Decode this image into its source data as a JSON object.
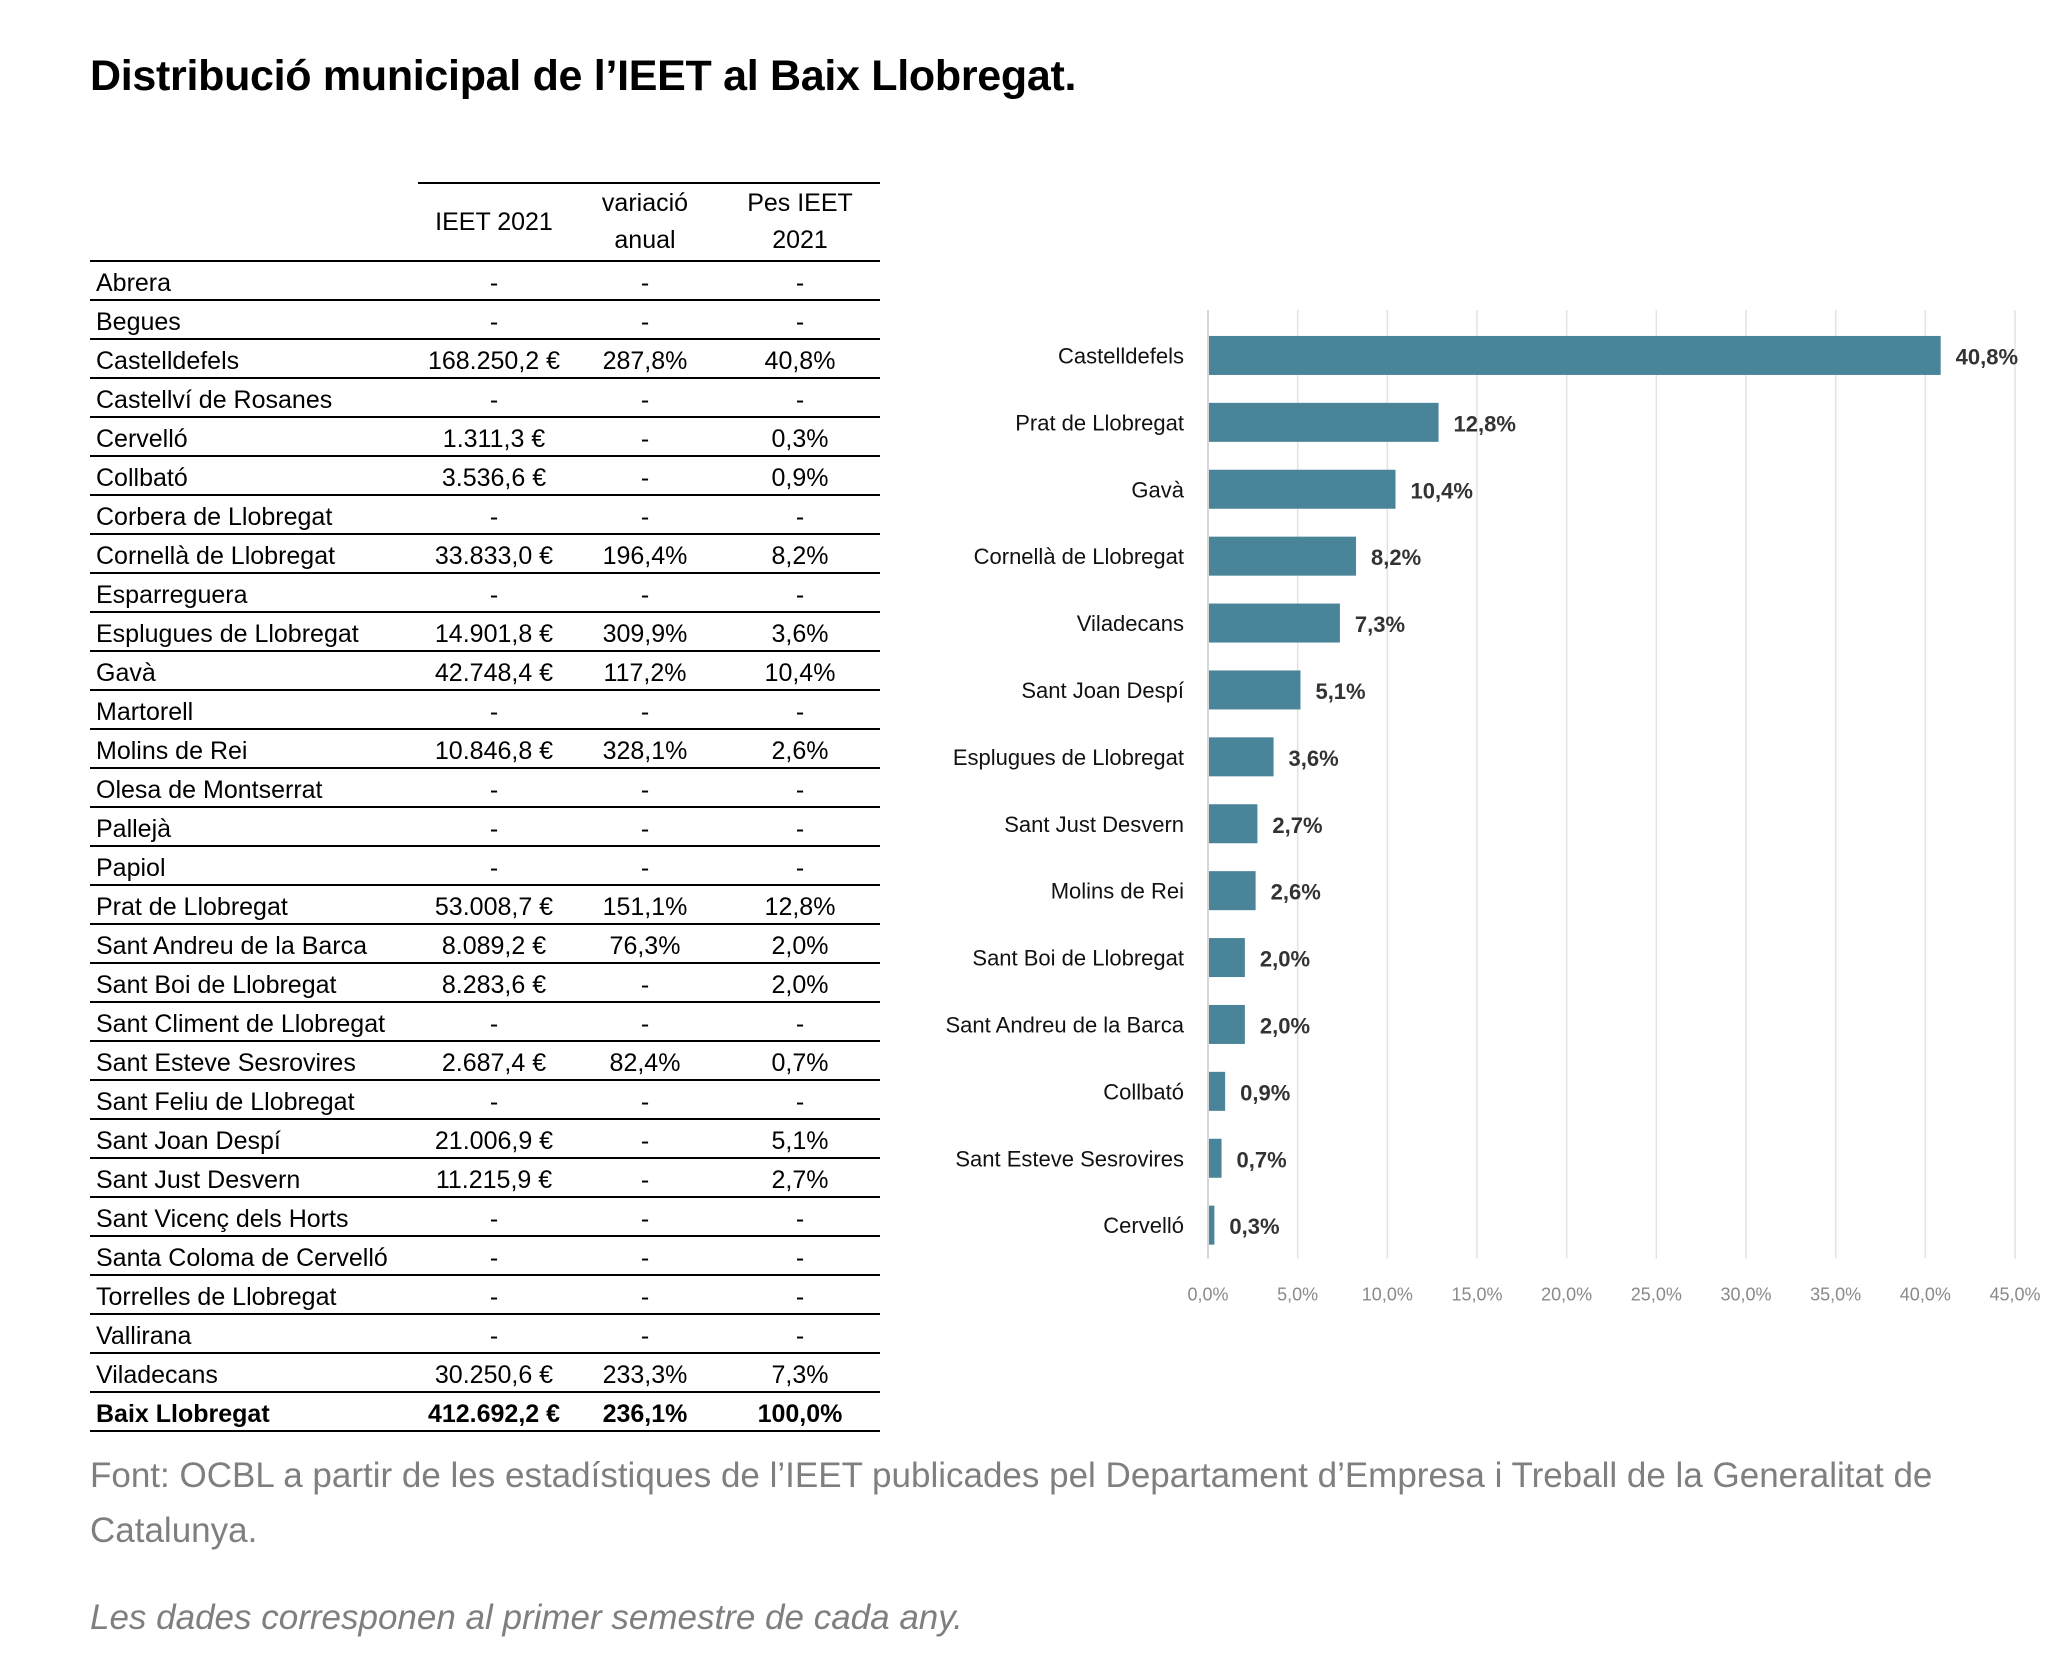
{
  "title": "Distribució municipal de l’IEET al Baix Llobregat.",
  "table": {
    "headers": [
      "",
      "IEET 2021",
      "variació\nanual",
      "Pes IEET\n2021"
    ],
    "rows": [
      [
        "Abrera",
        "-",
        "-",
        "-"
      ],
      [
        "Begues",
        "-",
        "-",
        "-"
      ],
      [
        "Castelldefels",
        "168.250,2 €",
        "287,8%",
        "40,8%"
      ],
      [
        "Castellví de Rosanes",
        "-",
        "-",
        "-"
      ],
      [
        "Cervelló",
        "1.311,3 €",
        "-",
        "0,3%"
      ],
      [
        "Collbató",
        "3.536,6 €",
        "-",
        "0,9%"
      ],
      [
        "Corbera de Llobregat",
        "-",
        "-",
        "-"
      ],
      [
        "Cornellà de Llobregat",
        "33.833,0 €",
        "196,4%",
        "8,2%"
      ],
      [
        "Esparreguera",
        "-",
        "-",
        "-"
      ],
      [
        "Esplugues de Llobregat",
        "14.901,8 €",
        "309,9%",
        "3,6%"
      ],
      [
        "Gavà",
        "42.748,4 €",
        "117,2%",
        "10,4%"
      ],
      [
        "Martorell",
        "-",
        "-",
        "-"
      ],
      [
        "Molins de Rei",
        "10.846,8 €",
        "328,1%",
        "2,6%"
      ],
      [
        "Olesa de Montserrat",
        "-",
        "-",
        "-"
      ],
      [
        "Pallejà",
        "-",
        "-",
        "-"
      ],
      [
        "Papiol",
        "-",
        "-",
        "-"
      ],
      [
        "Prat de Llobregat",
        "53.008,7 €",
        "151,1%",
        "12,8%"
      ],
      [
        "Sant Andreu de la Barca",
        "8.089,2 €",
        "76,3%",
        "2,0%"
      ],
      [
        "Sant Boi de Llobregat",
        "8.283,6 €",
        "-",
        "2,0%"
      ],
      [
        "Sant Climent de Llobregat",
        "-",
        "-",
        "-"
      ],
      [
        "Sant Esteve Sesrovires",
        "2.687,4 €",
        "82,4%",
        "0,7%"
      ],
      [
        "Sant Feliu de Llobregat",
        "-",
        "-",
        "-"
      ],
      [
        "Sant Joan Despí",
        "21.006,9 €",
        "-",
        "5,1%"
      ],
      [
        "Sant Just Desvern",
        "11.215,9 €",
        "-",
        "2,7%"
      ],
      [
        "Sant Vicenç dels Horts",
        "-",
        "-",
        "-"
      ],
      [
        "Santa Coloma de Cervelló",
        "-",
        "-",
        "-"
      ],
      [
        "Torrelles de Llobregat",
        "-",
        "-",
        "-"
      ],
      [
        "Vallirana",
        "-",
        "-",
        "-"
      ],
      [
        "Viladecans",
        "30.250,6 €",
        "233,3%",
        "7,3%"
      ]
    ],
    "total": [
      "Baix Llobregat",
      "412.692,2 €",
      "236,1%",
      "100,0%"
    ]
  },
  "chart_data": {
    "type": "bar",
    "orientation": "horizontal",
    "categories": [
      "Castelldefels",
      "Prat de Llobregat",
      "Gavà",
      "Cornellà de Llobregat",
      "Viladecans",
      "Sant Joan Despí",
      "Esplugues de Llobregat",
      "Sant Just Desvern",
      "Molins de Rei",
      "Sant Boi de Llobregat",
      "Sant Andreu de la Barca",
      "Collbató",
      "Sant Esteve Sesrovires",
      "Cervelló"
    ],
    "values": [
      40.8,
      12.8,
      10.4,
      8.2,
      7.3,
      5.1,
      3.6,
      2.7,
      2.6,
      2.0,
      2.0,
      0.9,
      0.7,
      0.3
    ],
    "value_labels": [
      "40,8%",
      "12,8%",
      "10,4%",
      "8,2%",
      "7,3%",
      "5,1%",
      "3,6%",
      "2,7%",
      "2,6%",
      "2,0%",
      "2,0%",
      "0,9%",
      "0,7%",
      "0,3%"
    ],
    "xlim": [
      0,
      45
    ],
    "xticks": [
      0,
      5,
      10,
      15,
      20,
      25,
      30,
      35,
      40,
      45
    ],
    "xtick_labels": [
      "0,0%",
      "5,0%",
      "10,0%",
      "15,0%",
      "20,0%",
      "25,0%",
      "30,0%",
      "35,0%",
      "40,0%",
      "45,0%"
    ],
    "bar_color": "#4a8499",
    "grid": true,
    "legend": "none",
    "title": "",
    "xlabel": "",
    "ylabel": ""
  },
  "source": "Font: OCBL a partir de les estadístiques de l’IEET publicades pel Departament d’Empresa i Treball de la Generalitat de Catalunya.",
  "note": "Les dades corresponen al primer semestre de cada any."
}
